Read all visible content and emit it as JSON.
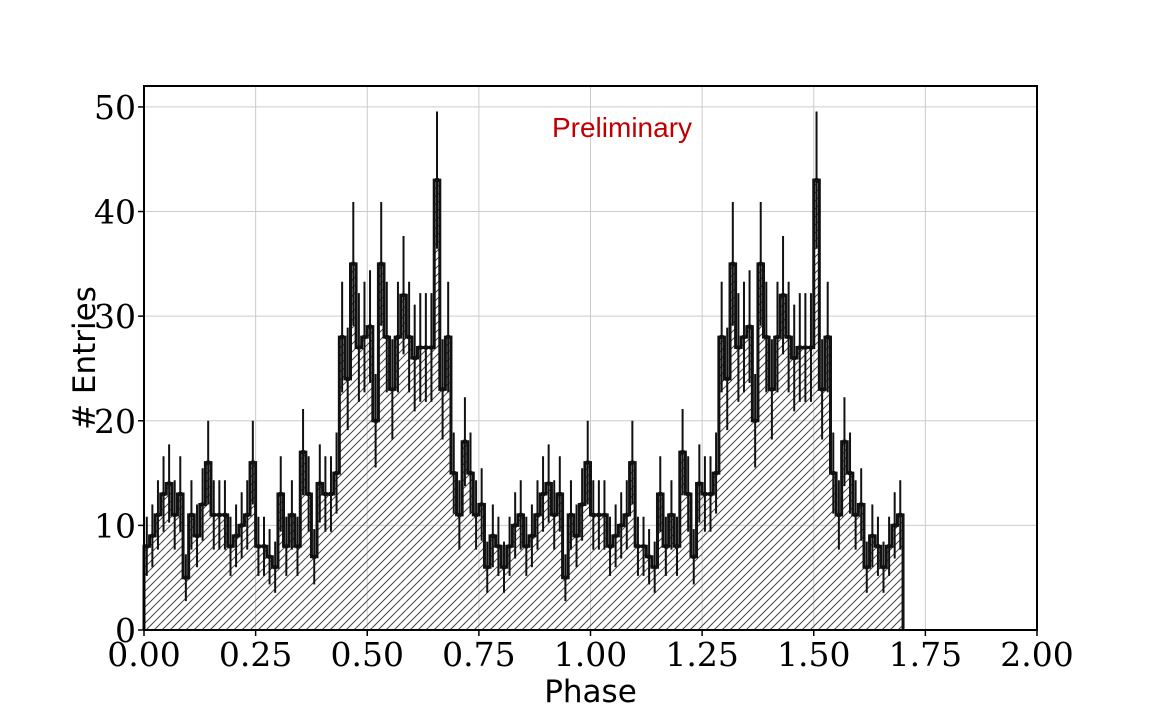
{
  "colors": {
    "annotation": "#c00000",
    "histogram": "#111111",
    "grid": "#cccccc"
  },
  "chart_data": {
    "type": "histogram",
    "xlabel": "Phase",
    "ylabel": "# Entries",
    "annotation": "Preliminary",
    "xlim": [
      0,
      2
    ],
    "ylim": [
      0,
      52
    ],
    "grid": true,
    "fill_style": "hatched",
    "error_bars": "sqrt(N)",
    "xticks": [
      "0.00",
      "0.25",
      "0.50",
      "0.75",
      "1.00",
      "1.25",
      "1.50",
      "1.75",
      "2.00"
    ],
    "yticks": [
      "0",
      "10",
      "20",
      "30",
      "40",
      "50"
    ],
    "bin_width": 0.0125,
    "counts": [
      8,
      9,
      11,
      13,
      14,
      11,
      13,
      5,
      11,
      9,
      12,
      16,
      11,
      11,
      11,
      8,
      9,
      10,
      11,
      16,
      8,
      8,
      7,
      6,
      13,
      8,
      11,
      8,
      17,
      13,
      7,
      14,
      13,
      13,
      15,
      28,
      24,
      35,
      27,
      28,
      29,
      20,
      35,
      28,
      23,
      28,
      32,
      28,
      26,
      27,
      27,
      27,
      43,
      23,
      28,
      15,
      11,
      18,
      15,
      11,
      12,
      6,
      9,
      8,
      6,
      8,
      10,
      11,
      8,
      9,
      11,
      13,
      14,
      11,
      13,
      5,
      11,
      9,
      12,
      16,
      11,
      11,
      11,
      8,
      9,
      10,
      11,
      16,
      8,
      8,
      7,
      6,
      13,
      8,
      11,
      8,
      17,
      13,
      7,
      14,
      13,
      13,
      15,
      28,
      24,
      35,
      27,
      28,
      29,
      20,
      35,
      28,
      23,
      28,
      32,
      28,
      26,
      27,
      27,
      27,
      43,
      23,
      28,
      15,
      11,
      18,
      15,
      11,
      12,
      6,
      9,
      8,
      6,
      8,
      10,
      11
    ]
  }
}
